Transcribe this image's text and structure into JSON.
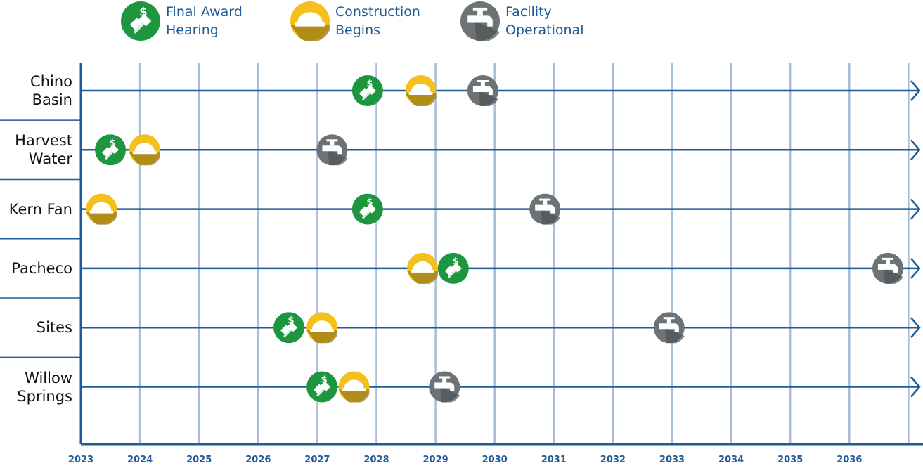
{
  "legend": [
    {
      "key": "award",
      "line1": "Final Award",
      "line2": "Hearing",
      "color": "#1e9640",
      "icon": "handshake-dollar-icon"
    },
    {
      "key": "construction",
      "line1": "Construction",
      "line2": "Begins",
      "color": "#f3c01c",
      "icon": "hard-hat-icon"
    },
    {
      "key": "operational",
      "line1": "Facility",
      "line2": "Operational",
      "color": "#6d7275",
      "icon": "faucet-icon"
    }
  ],
  "chart_data": {
    "type": "timeline",
    "x_axis": {
      "min": 2023,
      "max": 2037,
      "ticks": [
        "2023",
        "2024",
        "2025",
        "2026",
        "2027",
        "2028",
        "2029",
        "2030",
        "2031",
        "2032",
        "2033",
        "2034",
        "2035",
        "2036"
      ]
    },
    "rows": [
      {
        "label_line1": "Chino",
        "label_line2": "Basin",
        "award": 2027.85,
        "construction": 2028.75,
        "operational": 2029.8
      },
      {
        "label_line1": "Harvest",
        "label_line2": "Water",
        "award": 2023.5,
        "construction": 2024.08,
        "operational": 2027.25
      },
      {
        "label_line1": "Kern Fan",
        "label_line2": "",
        "award": 2027.85,
        "construction": 2023.35,
        "operational": 2030.85
      },
      {
        "label_line1": "Pacheco",
        "label_line2": "",
        "award": 2029.3,
        "construction": 2028.78,
        "operational": 2036.65
      },
      {
        "label_line1": "Sites",
        "label_line2": "",
        "award": 2026.52,
        "construction": 2027.08,
        "operational": 2032.95
      },
      {
        "label_line1": "Willow",
        "label_line2": "Springs",
        "award": 2027.08,
        "construction": 2027.62,
        "operational": 2029.15
      }
    ]
  }
}
